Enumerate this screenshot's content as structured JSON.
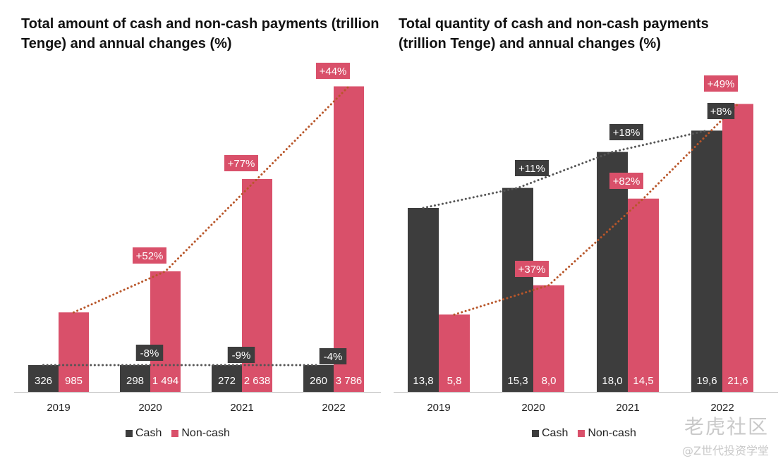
{
  "chart_data": [
    {
      "type": "bar",
      "title": "Total amount of cash and non-cash payments (trillion Tenge) and annual changes (%)",
      "categories": [
        "2019",
        "2020",
        "2021",
        "2022"
      ],
      "series": [
        {
          "name": "Cash",
          "values": [
            326,
            298,
            272,
            260
          ],
          "labels": [
            "326",
            "298",
            "272",
            "260"
          ],
          "color": "#3d3d3d"
        },
        {
          "name": "Non-cash",
          "values": [
            985,
            1494,
            2638,
            3786
          ],
          "labels": [
            "985",
            "1 494",
            "2 638",
            "3 786"
          ],
          "color": "#d9506a"
        }
      ],
      "changes": {
        "Cash": [
          null,
          "-8%",
          "-9%",
          "-4%"
        ],
        "Non-cash": [
          null,
          "+52%",
          "+77%",
          "+44%"
        ]
      },
      "ylim": [
        0,
        4000
      ],
      "legend": "bottom",
      "grid": false
    },
    {
      "type": "bar",
      "title": "Total quantity of cash and non-cash payments (trillion Tenge) and annual changes (%)",
      "categories": [
        "2019",
        "2020",
        "2021",
        "2022"
      ],
      "series": [
        {
          "name": "Cash",
          "values": [
            13.8,
            15.3,
            18.0,
            19.6
          ],
          "labels": [
            "13,8",
            "15,3",
            "18,0",
            "19,6"
          ],
          "color": "#3d3d3d"
        },
        {
          "name": "Non-cash",
          "values": [
            5.8,
            8.0,
            14.5,
            21.6
          ],
          "labels": [
            "5,8",
            "8,0",
            "14,5",
            "21,6"
          ],
          "color": "#d9506a"
        }
      ],
      "changes": {
        "Cash": [
          null,
          "+11%",
          "+18%",
          "+8%"
        ],
        "Non-cash": [
          null,
          "+37%",
          "+82%",
          "+49%"
        ]
      },
      "ylim": [
        0,
        23
      ],
      "legend": "bottom",
      "grid": false
    }
  ],
  "legend": {
    "cash": "Cash",
    "noncash": "Non-cash"
  },
  "colors": {
    "cash": "#3d3d3d",
    "noncash": "#d9506a",
    "cash_trend": "#555555",
    "noncash_trend": "#b8562a"
  },
  "watermark": {
    "logo": "老虎社区",
    "sub": "@Z世代投资学堂"
  }
}
